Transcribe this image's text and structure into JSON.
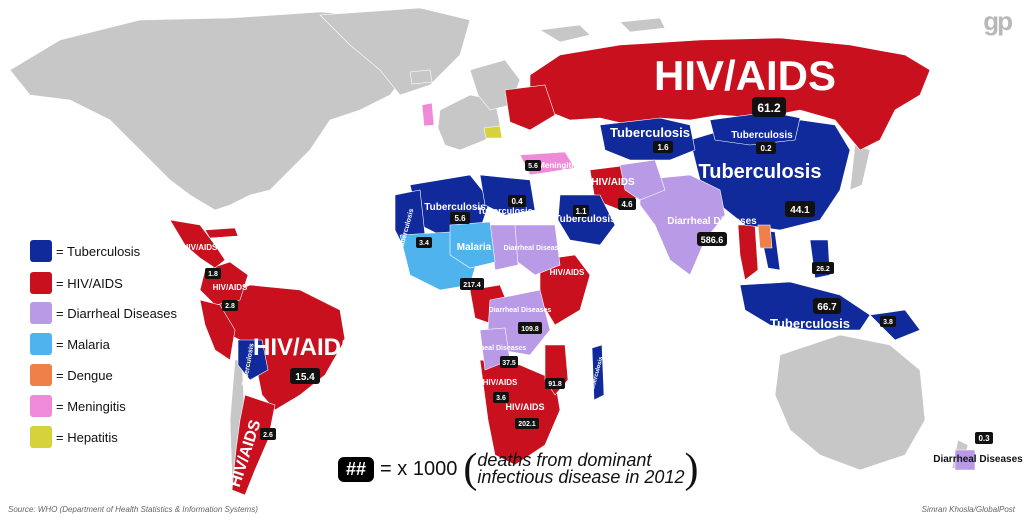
{
  "logo": "gp",
  "colors": {
    "tuberculosis": "#102a9c",
    "hiv_aids": "#c8101e",
    "diarrheal": "#b99ae6",
    "malaria": "#4fb4ee",
    "dengue": "#f0804a",
    "meningitis": "#ee8ad8",
    "hepatitis": "#d6d33a",
    "land": "#c7c7c7",
    "ocean": "#ffffff"
  },
  "legend": [
    {
      "label": "= Tuberculosis",
      "color": "#102a9c"
    },
    {
      "label": "= HIV/AIDS",
      "color": "#c8101e"
    },
    {
      "label": "= Diarrheal Diseases",
      "color": "#b99ae6"
    },
    {
      "label": "= Malaria",
      "color": "#4fb4ee"
    },
    {
      "label": "= Dengue",
      "color": "#f0804a"
    },
    {
      "label": "= Meningitis",
      "color": "#ee8ad8"
    },
    {
      "label": "= Hepatitis",
      "color": "#d6d33a"
    }
  ],
  "key": {
    "symbol": "##",
    "equals": "= x 1000",
    "description_line1": "deaths from dominant",
    "description_line2": "infectious disease in 2012"
  },
  "source": "Source: WHO (Department of Health Statistics & Information Systems)",
  "credit": "Simran Khosla/GlobalPost",
  "regions": {
    "russia": {
      "disease": "HIV/AIDS",
      "value": "61.2"
    },
    "china": {
      "disease": "Tuberculosis",
      "value": "44.1"
    },
    "india": {
      "disease": "Diarrheal Diseases",
      "value": "586.6"
    },
    "brazil": {
      "disease": "HIV/AIDS",
      "value": "15.4"
    },
    "indonesia": {
      "disease": "Tuberculosis",
      "value": "66.7"
    },
    "kazakhstan": {
      "disease": "Tuberculosis",
      "value": "1.6"
    },
    "mongolia": {
      "disease": "Tuberculosis",
      "value": "0.2"
    },
    "iran": {
      "disease": "HIV/AIDS",
      "value": "4.6"
    },
    "saudi": {
      "disease": "Tuberculosis",
      "value": "1.1"
    },
    "algeria": {
      "disease": "Tuberculosis",
      "value": "5.6"
    },
    "libya": {
      "disease": "Tuberculosis",
      "value": "0.4"
    },
    "mali": {
      "disease": "Malaria"
    },
    "sudan": {
      "disease": "Diarrheal Diseases"
    },
    "ethiopia": {
      "disease": "HIV/AIDS"
    },
    "nigeria": {
      "value": "217.4"
    },
    "drc": {
      "disease": "Diarrheal Diseases",
      "value": "109.8"
    },
    "angola": {
      "disease": "Diarrheal Diseases",
      "value": "37.5"
    },
    "namibia": {
      "disease": "HIV/AIDS",
      "value": "3.6"
    },
    "southafrica": {
      "disease": "HIV/AIDS",
      "value": "202.1"
    },
    "mozambique": {
      "value": "91.8"
    },
    "madagascar": {
      "disease": "Tuberculosis"
    },
    "argentina": {
      "disease": "HIV/AIDS",
      "value": "2.6"
    },
    "bolivia": {
      "disease": "Tuberculosis"
    },
    "mexico": {
      "disease": "HIV/AIDS",
      "value": "1.8"
    },
    "colombia": {
      "disease": "HIV/AIDS",
      "value": "2.8"
    },
    "philippines": {
      "value": "26.2"
    },
    "png": {
      "value": "3.8"
    },
    "morocco": {
      "disease": "Tuberculosis",
      "value": "3.4"
    },
    "turkey": {
      "disease": "Meningitis",
      "value": "5.6"
    },
    "pacific": {
      "disease": "Diarrheal Diseases",
      "value": "0.3"
    },
    "fiji": {
      "disease": "Diarrheal Diseases"
    }
  }
}
